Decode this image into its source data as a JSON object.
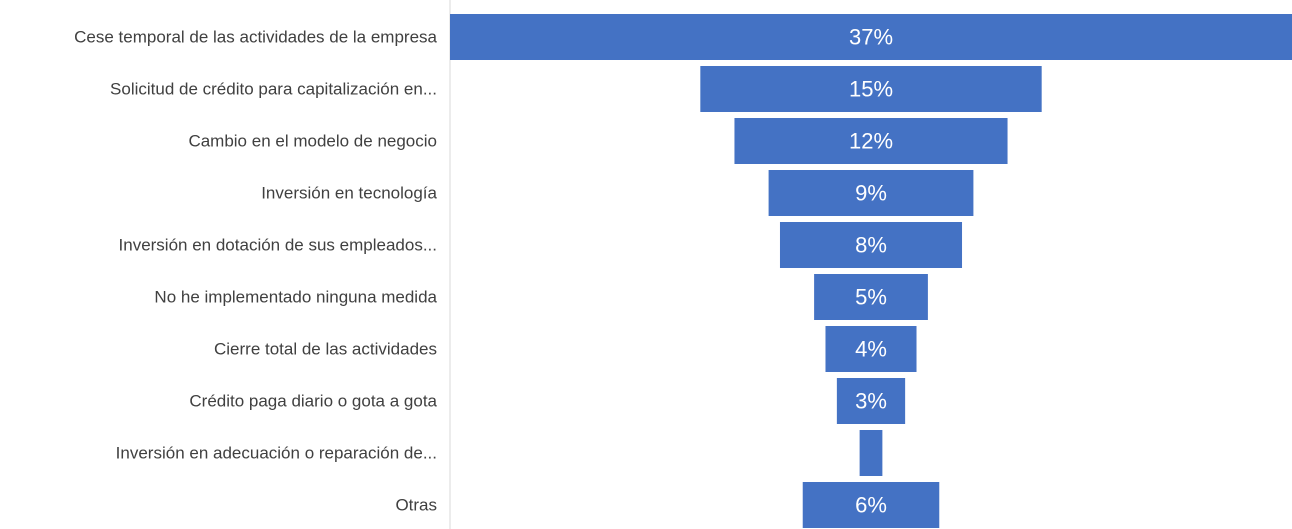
{
  "chart_data": {
    "type": "funnel",
    "categories": [
      "Cese temporal de las actividades de la empresa",
      "Solicitud de crédito para capitalización en...",
      "Cambio en el modelo de negocio",
      "Inversión en tecnología",
      "Inversión en dotación de sus empleados...",
      "No he implementado ninguna medida",
      "Cierre total de las actividades",
      "Crédito paga diario o gota a gota",
      "Inversión en adecuación o reparación de...",
      "Otras"
    ],
    "values": [
      37,
      15,
      12,
      9,
      8,
      5,
      4,
      3,
      1,
      6
    ],
    "value_labels": [
      "37%",
      "15%",
      "12%",
      "9%",
      "8%",
      "5%",
      "4%",
      "3%",
      null,
      "6%"
    ],
    "color": "#4472c4"
  }
}
